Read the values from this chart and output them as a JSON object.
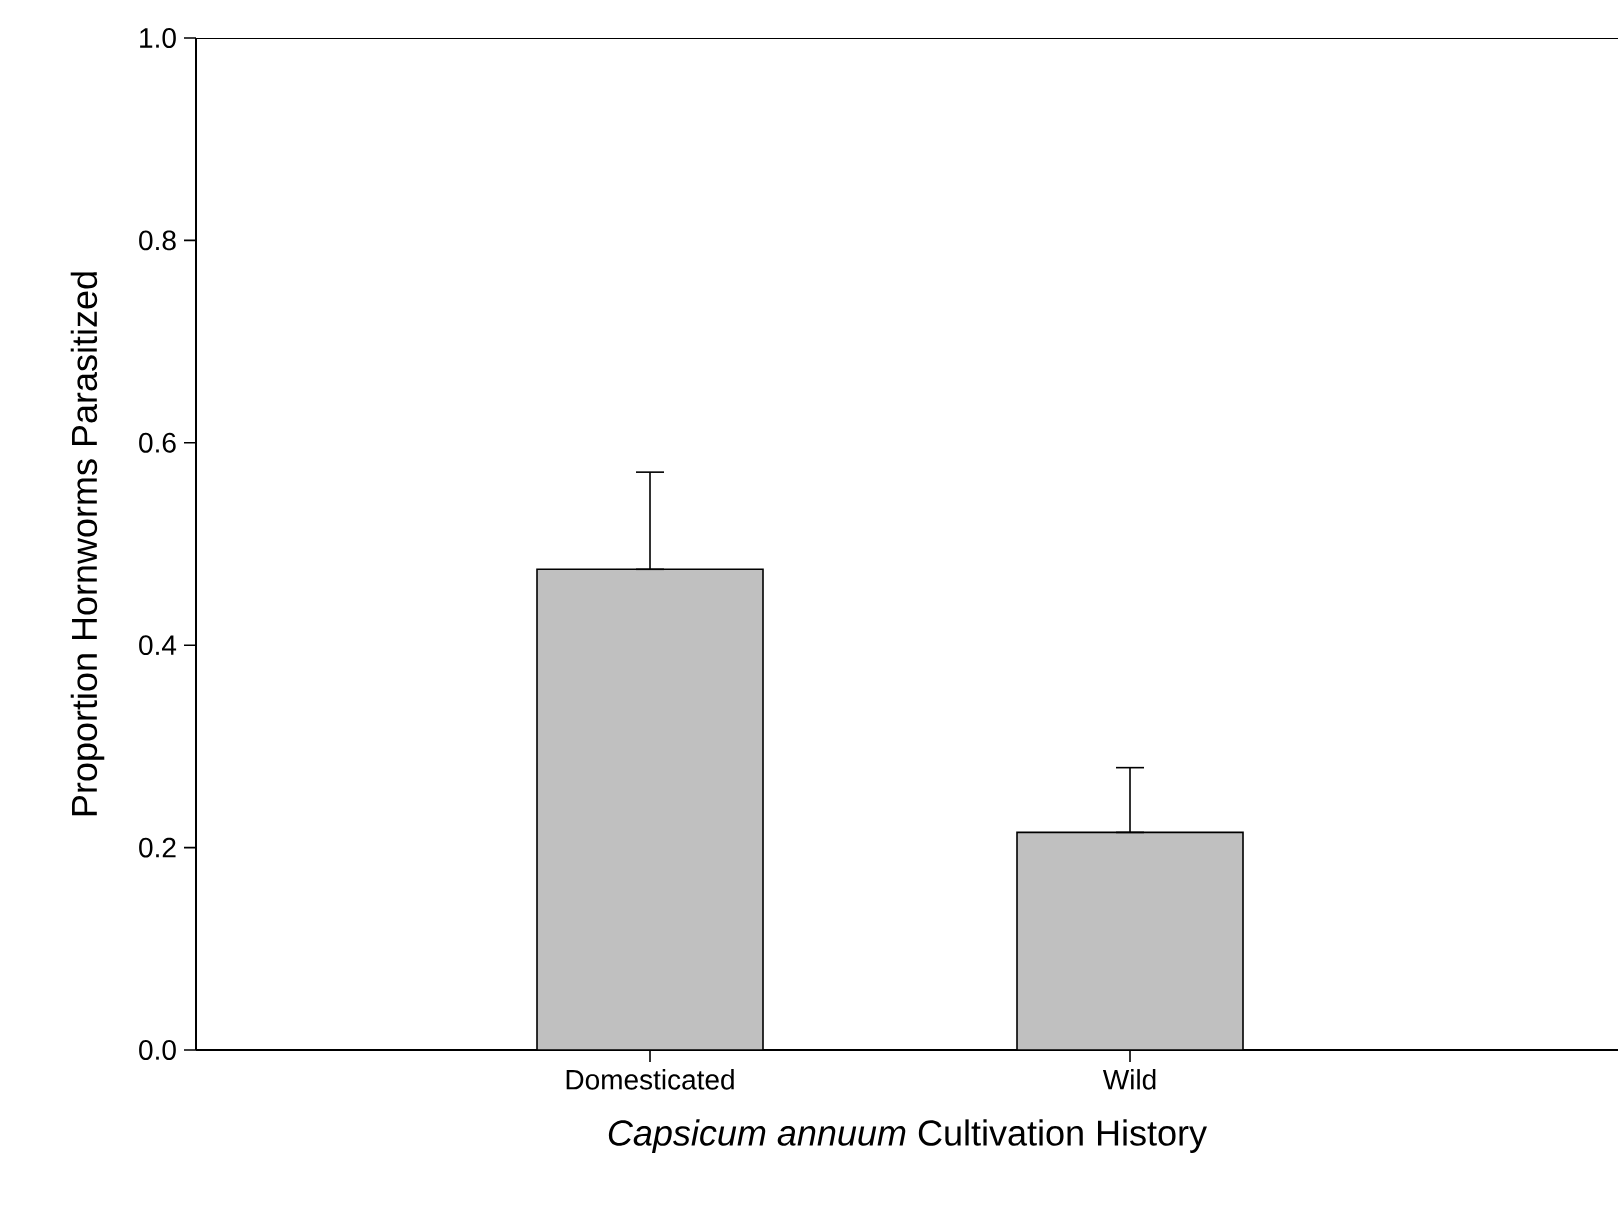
{
  "chart_data": {
    "type": "bar",
    "xlabel": "*Capsicum annuum* Cultivation History",
    "ylabel": "Proportion Hornworms Parasitized",
    "categories": [
      "Domesticated",
      "Wild"
    ],
    "values": [
      0.475,
      0.215
    ],
    "errors": [
      [
        0.475,
        0.571
      ],
      [
        0.215,
        0.279
      ]
    ],
    "color": "#c0c0c0",
    "ylim": [
      0,
      1
    ],
    "yticks": [
      {
        "value": 0,
        "label": "0.0"
      },
      {
        "value": 0.2,
        "label": "0.2"
      },
      {
        "value": 0.4,
        "label": "0.4"
      },
      {
        "value": 0.6,
        "label": "0.6"
      },
      {
        "value": 0.8,
        "label": "0.8"
      },
      {
        "value": 1,
        "label": "1.0"
      }
    ],
    "grid": false
  }
}
